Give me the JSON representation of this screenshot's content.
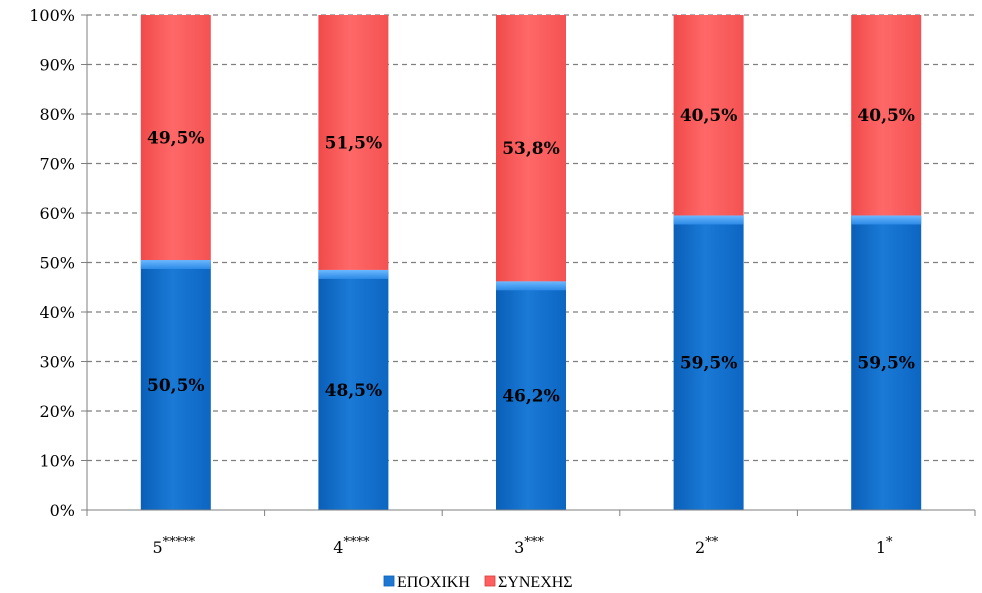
{
  "chart_data": {
    "type": "bar",
    "stacked": true,
    "percent": true,
    "categories": [
      "5*****",
      "4****",
      "3***",
      "2**",
      "1*"
    ],
    "series": [
      {
        "name": "ΕΠΟΧΙΚΗ",
        "values": [
          50.5,
          48.5,
          46.2,
          59.5,
          59.5
        ],
        "labels": [
          "50,5%",
          "48,5%",
          "46,2%",
          "59,5%",
          "59,5%"
        ],
        "color": "#1f77d4"
      },
      {
        "name": "ΣΥΝΕΧΗΣ",
        "values": [
          49.5,
          51.5,
          53.8,
          40.5,
          40.5
        ],
        "labels": [
          "49,5%",
          "51,5%",
          "53,8%",
          "40,5%",
          "40,5%"
        ],
        "color": "#ff5f5f"
      }
    ],
    "ylim": [
      0,
      100
    ],
    "yticks": [
      "0%",
      "10%",
      "20%",
      "30%",
      "40%",
      "50%",
      "60%",
      "70%",
      "80%",
      "90%",
      "100%"
    ],
    "grid": true,
    "legend_position": "bottom"
  }
}
